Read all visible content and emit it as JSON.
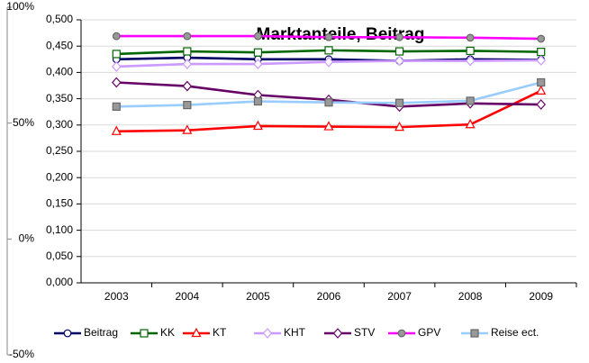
{
  "chart_data": {
    "type": "line",
    "title": "Marktanteile, Beitrag",
    "categories": [
      "2003",
      "2004",
      "2005",
      "2006",
      "2007",
      "2008",
      "2009"
    ],
    "series": [
      {
        "name": "Beitrag",
        "color": "#000066",
        "marker": "circle",
        "marker_fill": "#ffffff",
        "values": [
          0.425,
          0.428,
          0.425,
          0.425,
          0.422,
          0.425,
          0.424
        ]
      },
      {
        "name": "KK",
        "color": "#006600",
        "marker": "square",
        "marker_fill": "#ffffff",
        "values": [
          0.435,
          0.44,
          0.438,
          0.442,
          0.44,
          0.441,
          0.439
        ]
      },
      {
        "name": "KT",
        "color": "#ff0000",
        "marker": "triangle",
        "marker_fill": "#ffffff",
        "values": [
          0.288,
          0.29,
          0.298,
          0.297,
          0.296,
          0.301,
          0.365
        ]
      },
      {
        "name": "KHT",
        "color": "#cc99ff",
        "marker": "diamond",
        "marker_fill": "#ffffff",
        "values": [
          0.411,
          0.416,
          0.416,
          0.42,
          0.422,
          0.422,
          0.423
        ]
      },
      {
        "name": "STV",
        "color": "#660066",
        "marker": "diamond",
        "marker_fill": "#ffffff",
        "values": [
          0.381,
          0.374,
          0.357,
          0.348,
          0.335,
          0.341,
          0.339
        ]
      },
      {
        "name": "GPV",
        "color": "#ff00ff",
        "marker": "circle",
        "marker_fill": "#999999",
        "values": [
          0.469,
          0.469,
          0.469,
          0.467,
          0.467,
          0.466,
          0.464
        ]
      },
      {
        "name": "Reise ect.",
        "color": "#99ccff",
        "marker": "square",
        "marker_fill": "#999999",
        "values": [
          0.335,
          0.338,
          0.345,
          0.343,
          0.342,
          0.346,
          0.381
        ]
      }
    ],
    "ylim": [
      0,
      0.5
    ],
    "yticks": [
      {
        "value": 0,
        "label": "0,000"
      },
      {
        "value": 0.05,
        "label": "0,050"
      },
      {
        "value": 0.1,
        "label": "0,100"
      },
      {
        "value": 0.15,
        "label": "0,150"
      },
      {
        "value": 0.2,
        "label": "0,200"
      },
      {
        "value": 0.25,
        "label": "0,250"
      },
      {
        "value": 0.3,
        "label": "0,300"
      },
      {
        "value": 0.35,
        "label": "0,350"
      },
      {
        "value": 0.4,
        "label": "0,400"
      },
      {
        "value": 0.45,
        "label": "0,450"
      },
      {
        "value": 0.5,
        "label": "0,500"
      }
    ],
    "y2lim": [
      -50,
      100
    ],
    "y2ticks": [
      {
        "value": -50,
        "label": "-50%"
      },
      {
        "value": 0,
        "label": "0%"
      },
      {
        "value": 50,
        "label": "50%"
      },
      {
        "value": 100,
        "label": "100%"
      }
    ],
    "grid": true,
    "legend": "bottom"
  }
}
